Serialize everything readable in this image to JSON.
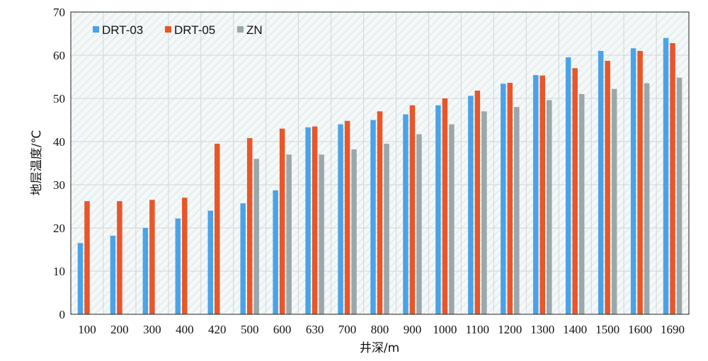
{
  "chart_data": {
    "type": "bar",
    "title": "",
    "xlabel": "井深/m",
    "ylabel": "地层温度/℃",
    "ylim": [
      0,
      70
    ],
    "yticks": [
      0,
      10,
      20,
      30,
      40,
      50,
      60,
      70
    ],
    "grid": true,
    "legend_position": "top-left",
    "categories": [
      "100",
      "200",
      "300",
      "400",
      "420",
      "500",
      "600",
      "630",
      "700",
      "800",
      "900",
      "1000",
      "1100",
      "1200",
      "1300",
      "1400",
      "1500",
      "1600",
      "1690"
    ],
    "series": [
      {
        "name": "DRT-03",
        "color": "#4aa3e8",
        "values": [
          16.5,
          18.2,
          20,
          22.2,
          24,
          25.7,
          28.7,
          43.3,
          44,
          45,
          46.3,
          48.4,
          50.6,
          53.4,
          55.4,
          59.5,
          61,
          61.6,
          64
        ]
      },
      {
        "name": "DRT-05",
        "color": "#e8562a",
        "values": [
          26.2,
          26.2,
          26.5,
          27,
          39.5,
          40.8,
          43,
          43.5,
          44.8,
          47,
          48.4,
          50,
          51.8,
          53.6,
          55.3,
          57,
          58.7,
          61,
          62.8
        ]
      },
      {
        "name": "ZN",
        "color": "#9aa8ab",
        "values": [
          null,
          null,
          null,
          null,
          null,
          36,
          37,
          37,
          38.2,
          39.5,
          41.7,
          44,
          47,
          48,
          49.6,
          51,
          52.2,
          53.5,
          54.8
        ]
      }
    ]
  }
}
